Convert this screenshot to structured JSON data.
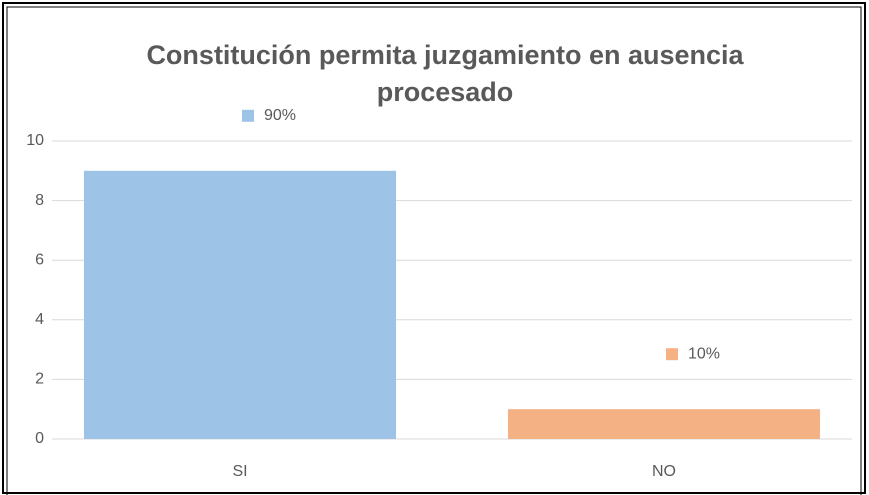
{
  "chart_data": {
    "type": "bar",
    "title": "Constitución permita juzgamiento en ausencia procesado",
    "categories": [
      "SI",
      "NO"
    ],
    "values": [
      9,
      1
    ],
    "colors": [
      "#9dc3e6",
      "#f4b183"
    ],
    "annotations": [
      "90%",
      "10%"
    ],
    "ylim": [
      0,
      10
    ],
    "yticks": [
      0,
      2,
      4,
      6,
      8,
      10
    ],
    "grid": true
  }
}
